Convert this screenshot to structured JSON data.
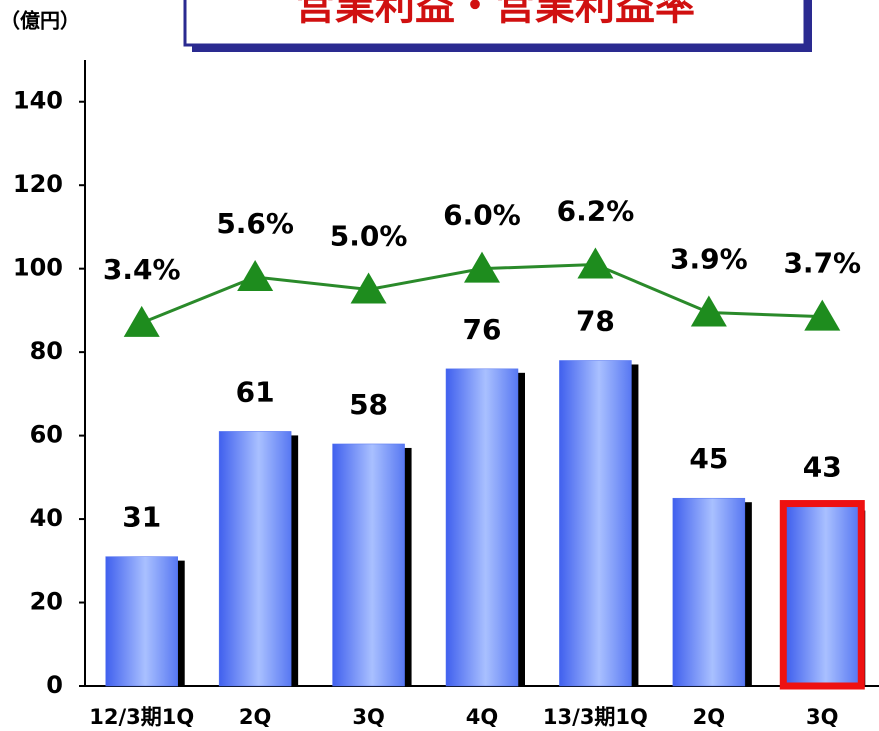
{
  "chart_data": {
    "type": "bar",
    "title": "営業利益・営業利益率",
    "y_axis_label": "（億円）",
    "categories": [
      "12/3期1Q",
      "2Q",
      "3Q",
      "4Q",
      "13/3期1Q",
      "2Q",
      "3Q"
    ],
    "series": [
      {
        "name": "営業利益",
        "type": "bar",
        "color": "#5070f0",
        "values": [
          31,
          61,
          58,
          76,
          78,
          45,
          43
        ]
      },
      {
        "name": "営業利益率",
        "type": "line",
        "axis": "y2",
        "color": "#2a8a2a",
        "values": [
          3.4,
          5.6,
          5.0,
          6.0,
          6.2,
          3.9,
          3.7
        ],
        "value_labels": [
          "3.4%",
          "5.6%",
          "5.0%",
          "6.0%",
          "6.2%",
          "3.9%",
          "3.7%"
        ]
      }
    ],
    "ylim": [
      0,
      150
    ],
    "yticks": [
      0,
      20,
      40,
      60,
      80,
      100,
      120,
      140
    ],
    "y2lim": [
      -14,
      16
    ],
    "highlight": {
      "index": 6,
      "color": "#ee1111"
    }
  }
}
